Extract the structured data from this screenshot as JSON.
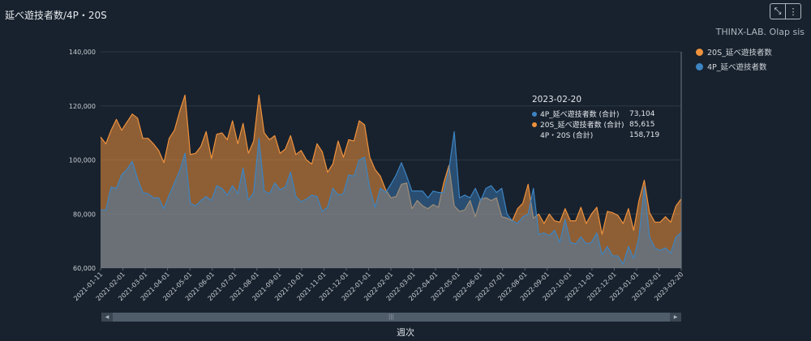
{
  "header": {
    "title": "延べ遊技者数/4P・20S",
    "subtitle": "THINX-LAB. Olap sis",
    "collapse_icon": "collapse-arrows-icon",
    "menu_icon": "vertical-dots-icon"
  },
  "legend": [
    {
      "label": "20S_延べ遊技者数",
      "color": "#f0923d"
    },
    {
      "label": "4P_延べ遊技者数",
      "color": "#3d84c3"
    }
  ],
  "tooltip": {
    "title": "2023-02-20",
    "rows": [
      {
        "label": "4P_延べ遊技者数 (合計)",
        "value": "73,104",
        "color": "#3d84c3"
      },
      {
        "label": "20S_延べ遊技者数 (合計)",
        "value": "85,615",
        "color": "#f0923d"
      },
      {
        "label": "4P・20S (合計)",
        "value": "158,719",
        "color": ""
      }
    ]
  },
  "scrollbar": {
    "left_arrow": "◀",
    "right_arrow": "▶",
    "grip": "|||"
  },
  "chart_data": {
    "type": "area",
    "xlabel": "週次",
    "ylabel": "",
    "ylim": [
      60000,
      140000
    ],
    "y_ticks": [
      "60,000",
      "80,000",
      "100,000",
      "120,000",
      "140,000"
    ],
    "x_ticks": [
      "2021-01-11",
      "2021-02-01",
      "2021-03-01",
      "2021-04-01",
      "2021-05-01",
      "2021-06-01",
      "2021-07-01",
      "2021-08-01",
      "2021-09-01",
      "2021-10-01",
      "2021-11-01",
      "2021-12-01",
      "2022-01-01",
      "2022-02-01",
      "2022-03-01",
      "2022-04-01",
      "2022-05-01",
      "2022-06-01",
      "2022-07-01",
      "2022-08-01",
      "2022-09-01",
      "2022-10-01",
      "2022-11-01",
      "2022-12-01",
      "2023-01-01",
      "2023-02-01",
      "2023-02-20"
    ],
    "grid": "horizontal",
    "legend_position": "right",
    "series": [
      {
        "name": "20S_延べ遊技者数",
        "color": "#f0923d",
        "values": [
          108500,
          106000,
          111000,
          115000,
          111000,
          114000,
          117000,
          115500,
          108000,
          108000,
          106000,
          103500,
          99000,
          108000,
          111000,
          118000,
          124000,
          102000,
          102500,
          105000,
          110500,
          100500,
          109500,
          110000,
          107500,
          114500,
          106000,
          113500,
          102500,
          107000,
          124000,
          110000,
          107500,
          109000,
          102500,
          104000,
          109000,
          102000,
          103500,
          100000,
          98500,
          106000,
          103000,
          95500,
          98500,
          107000,
          101000,
          107500,
          107000,
          114500,
          113000,
          101000,
          96500,
          94000,
          89000,
          86000,
          86500,
          91000,
          91500,
          82000,
          85000,
          83000,
          82000,
          83500,
          82500,
          91500,
          98000,
          83000,
          81000,
          81500,
          85000,
          79000,
          85500,
          86000,
          85000,
          86000,
          79000,
          78500,
          77500,
          82000,
          84000,
          91000,
          78500,
          80000,
          76500,
          80000,
          77500,
          77000,
          82000,
          77500,
          77500,
          82500,
          76500,
          80000,
          82500,
          72500,
          81000,
          80500,
          79500,
          76500,
          82000,
          74000,
          85000,
          92500,
          80500,
          77000,
          77000,
          79000,
          77000,
          83000,
          85615
        ]
      },
      {
        "name": "4P_延べ遊技者数",
        "color": "#3d84c3",
        "values": [
          81500,
          81500,
          90000,
          89500,
          94500,
          96500,
          99500,
          93000,
          88000,
          87500,
          86000,
          86000,
          82000,
          87000,
          91500,
          96000,
          102500,
          84000,
          83000,
          85000,
          86500,
          85000,
          90500,
          89500,
          87000,
          90500,
          87500,
          97000,
          85000,
          88000,
          108000,
          88500,
          87500,
          91500,
          89000,
          90000,
          95500,
          86500,
          84500,
          85500,
          87000,
          86500,
          81000,
          82500,
          89500,
          87000,
          87500,
          94500,
          94000,
          100000,
          101000,
          89500,
          82500,
          89500,
          88000,
          91000,
          94500,
          99000,
          94000,
          88500,
          88500,
          88500,
          86000,
          88500,
          88000,
          88000,
          96500,
          110500,
          86000,
          87000,
          86000,
          89500,
          85000,
          89500,
          90500,
          88000,
          89500,
          80000,
          77500,
          76500,
          79000,
          80000,
          89500,
          72500,
          73000,
          72000,
          74000,
          69500,
          78000,
          69500,
          69000,
          71500,
          69000,
          69500,
          73000,
          65000,
          68000,
          64500,
          64500,
          61500,
          68000,
          63500,
          71500,
          90000,
          71500,
          67500,
          66500,
          67500,
          65500,
          71500,
          73104
        ]
      }
    ]
  }
}
